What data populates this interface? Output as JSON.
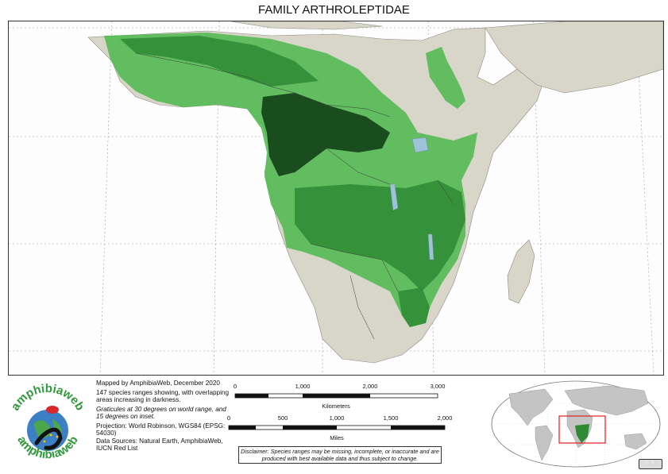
{
  "title": "FAMILY ARTHROLEPTIDAE",
  "logo": {
    "text_top": "amphibiaweb",
    "text_bottom": "amphibiaweb",
    "icon": "salamander-globe-icon"
  },
  "info": {
    "line1": "Mapped by AmphibiaWeb, December 2020",
    "line2": "147 species ranges showing, with overlapping areas increasing in darkness.",
    "line3": "Graticules at 30 degrees on world range, and 15 degrees on inset.",
    "line4": "Projection: World Robinson, WGS84 (EPSG: 54030)",
    "line5": "Data Sources: Natural Earth, AmphibiaWeb, IUCN Red List"
  },
  "scale_km": {
    "ticks": [
      "0",
      "1,000",
      "2,000",
      "3,000"
    ],
    "unit": "Kilometers"
  },
  "scale_mi": {
    "ticks": [
      "0",
      "500",
      "1,000",
      "1,500",
      "2,000"
    ],
    "unit": "Miles"
  },
  "disclaimer": "Disclaimer: Species ranges may be missing, incomplete, or inaccurate and are produced with best available data and thus subject to change.",
  "license": "cc-by-icon",
  "colors": {
    "range_light": "#4cb84c",
    "range_dark": "#0d3a12",
    "land": "#d8d6c8",
    "water": "#ffffff",
    "lake": "#9ec3d9",
    "inset_box": "#e02020"
  }
}
